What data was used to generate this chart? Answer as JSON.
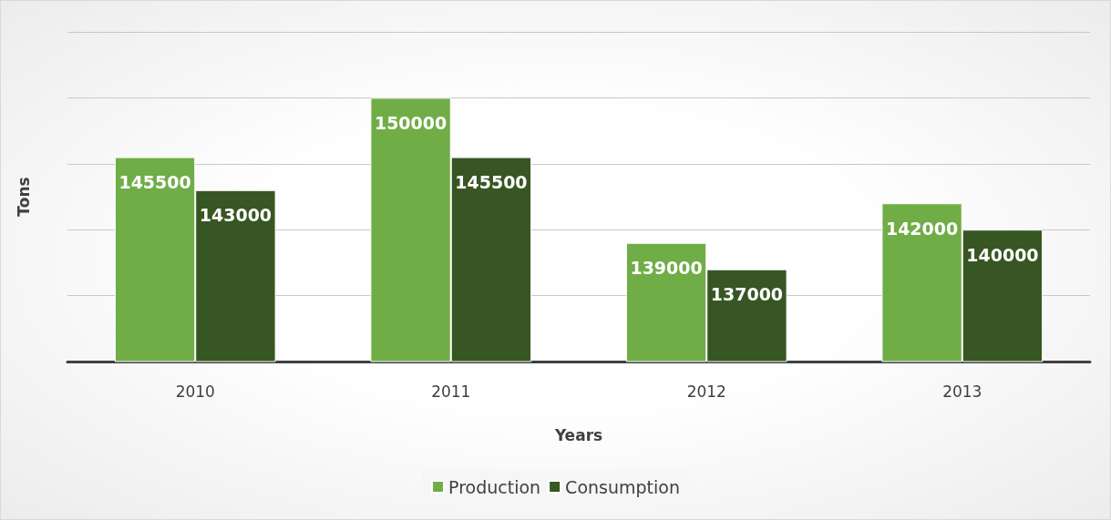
{
  "chart_data": {
    "type": "bar",
    "xlabel": "Years",
    "ylabel": "Tons",
    "categories": [
      "2010",
      "2011",
      "2012",
      "2013"
    ],
    "series": [
      {
        "name": "Production",
        "color": "#70ad47",
        "values": [
          145500,
          150000,
          139000,
          142000
        ]
      },
      {
        "name": "Consumption",
        "color": "#375623",
        "values": [
          143000,
          145500,
          137000,
          140000
        ]
      }
    ],
    "ylim": [
      130000,
      155000
    ],
    "yticks": [
      {
        "value": 130000,
        "label": null
      },
      {
        "value": 135000,
        "label": null
      },
      {
        "value": 140000,
        "label": null
      },
      {
        "value": 145000,
        "label": null
      },
      {
        "value": 150000,
        "label": null
      },
      {
        "value": 155000,
        "label": null
      }
    ],
    "tick_labels": "x",
    "grid": "y",
    "legend": "bottom",
    "data_labels": true
  }
}
